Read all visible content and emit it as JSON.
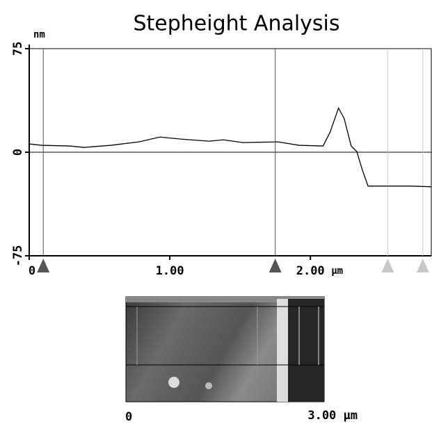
{
  "chart_data": {
    "type": "line",
    "title": "Stepheight Analysis",
    "y_unit": "nm",
    "x_unit": "µm",
    "x": [
      0,
      0.09,
      0.29,
      0.39,
      0.58,
      0.78,
      0.93,
      1.08,
      1.28,
      1.38,
      1.52,
      1.77,
      1.92,
      2.09,
      2.14,
      2.2,
      2.24,
      2.29,
      2.33,
      2.37,
      2.41,
      2.56,
      2.71,
      2.86
    ],
    "values": [
      6,
      5,
      4.5,
      3.5,
      5,
      7.5,
      11,
      9.5,
      8,
      9,
      7,
      7.5,
      5,
      4.5,
      14.5,
      32,
      24.5,
      4.5,
      0.5,
      -13,
      -24.5,
      -24.5,
      -24.5,
      -25
    ],
    "color": "#000000",
    "xlim": [
      0,
      2.86
    ],
    "ylim": [
      -75,
      75
    ],
    "xticks": [
      0,
      {
        "value": 1,
        "label": "1.00"
      },
      {
        "value": 2,
        "label": "2.00"
      }
    ],
    "yticks": [
      -75,
      0,
      75
    ],
    "zero_line": true,
    "cursors": [
      {
        "x": 0.1,
        "color": "#555555"
      },
      {
        "x": 1.75,
        "color": "#555555"
      },
      {
        "x": 2.55,
        "color": "#c8c8c8"
      },
      {
        "x": 2.8,
        "color": "#c8c8c8"
      }
    ],
    "image_panel": {
      "x_start": "0",
      "x_end": "3.00 µm"
    }
  }
}
